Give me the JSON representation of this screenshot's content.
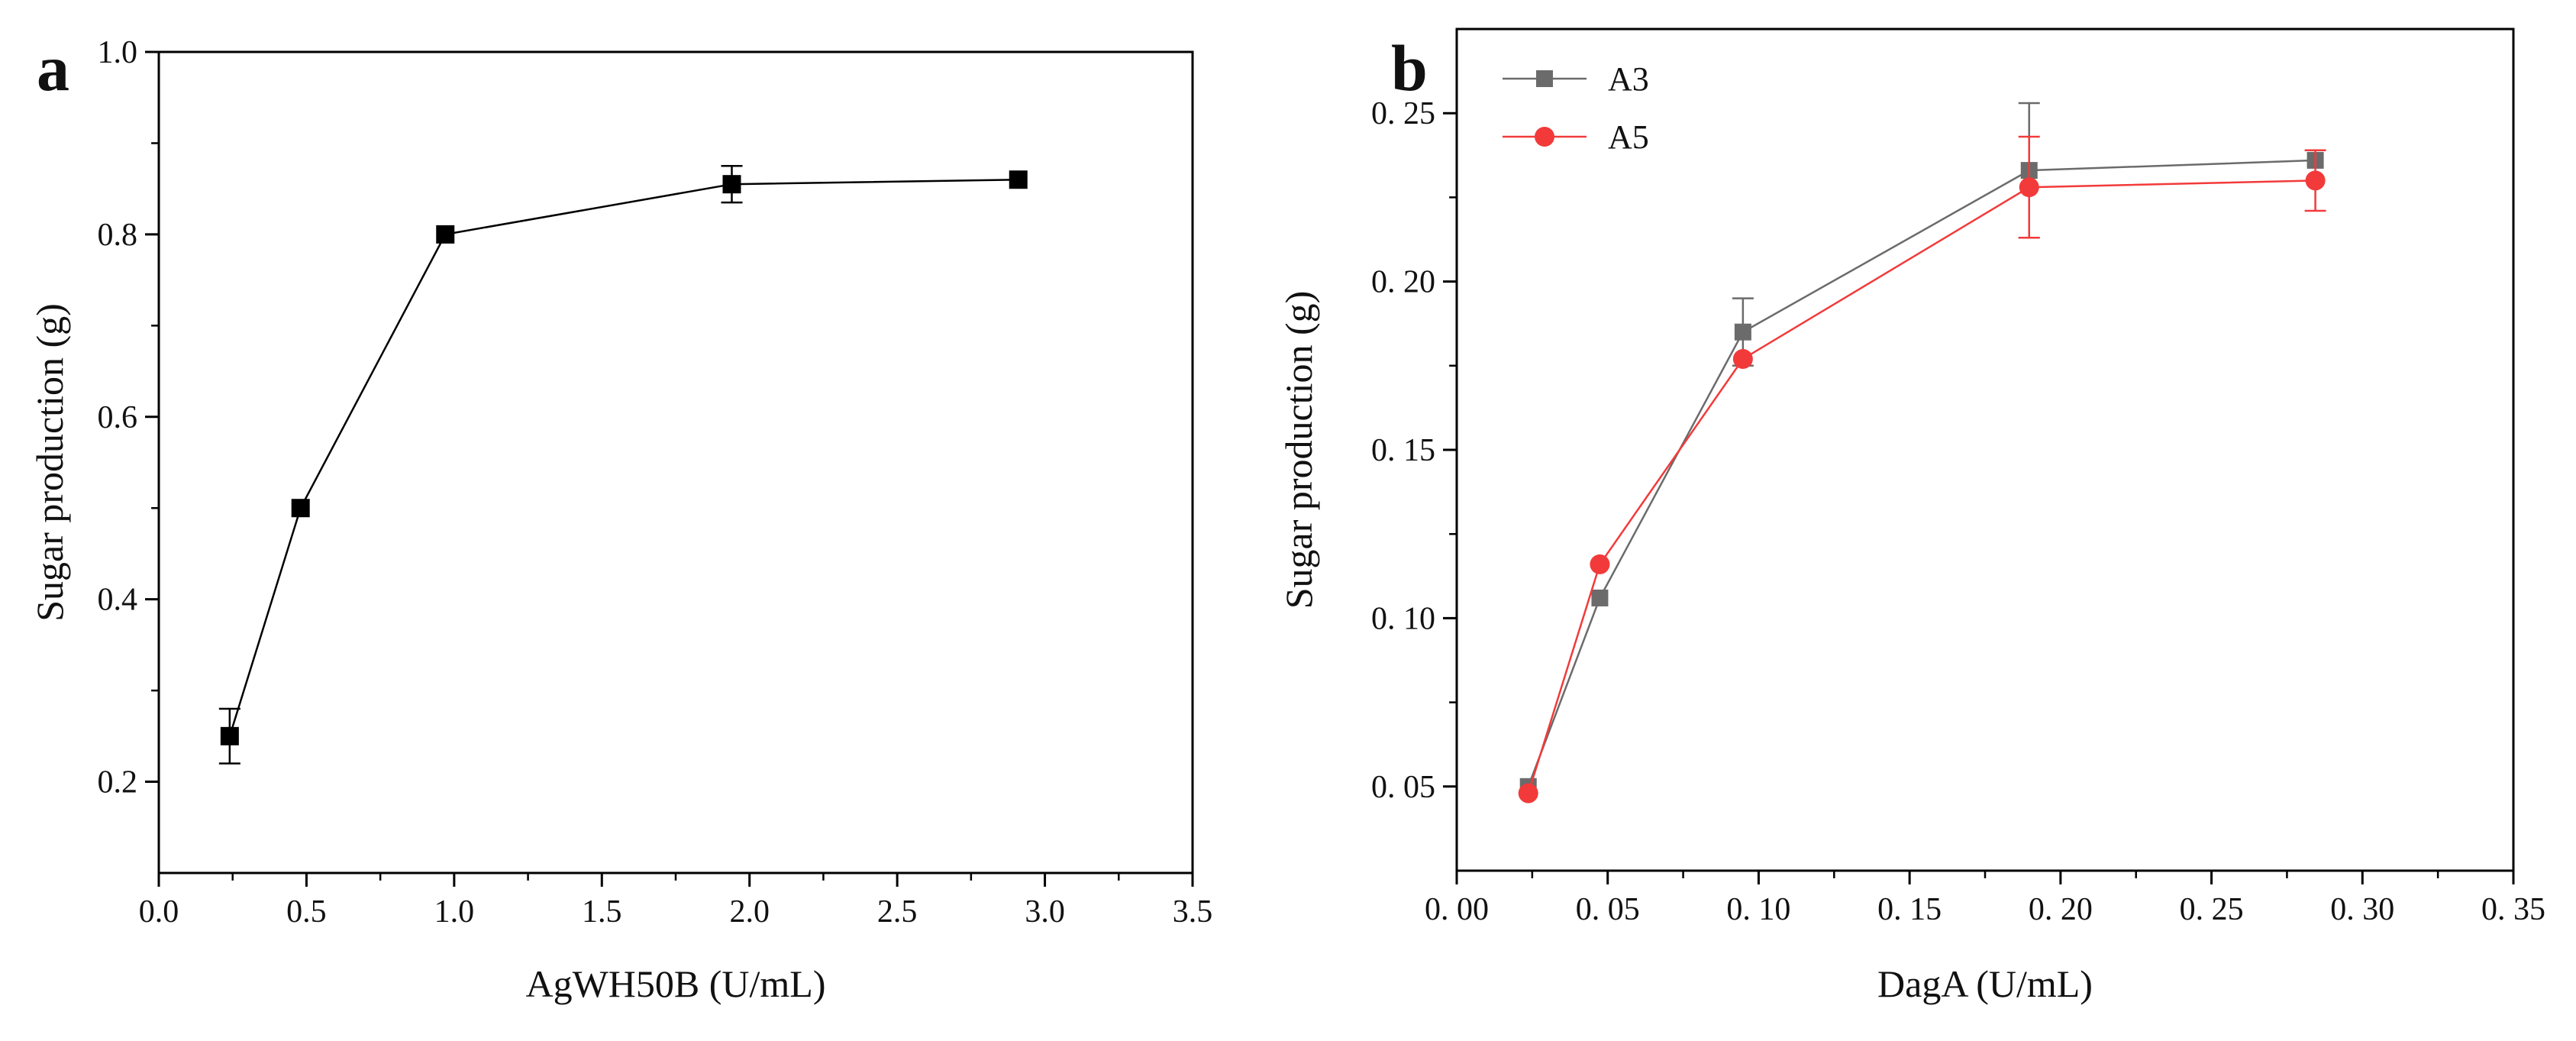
{
  "chart_data": [
    {
      "type": "line",
      "panel_label": "a",
      "title": "",
      "xlabel": "AgWH50B (U/mL)",
      "ylabel": "Sugar production (g)",
      "xlim": [
        0.0,
        3.5
      ],
      "ylim": [
        0.1,
        1.0
      ],
      "xticks": [
        0.0,
        0.5,
        1.0,
        1.5,
        2.0,
        2.5,
        3.0,
        3.5
      ],
      "xtick_labels": [
        "0.0",
        "0.5",
        "1.0",
        "1.5",
        "2.0",
        "2.5",
        "3.0",
        "3.5"
      ],
      "yticks": [
        0.2,
        0.4,
        0.6,
        0.8,
        1.0
      ],
      "ytick_labels": [
        "0.2",
        "0.4",
        "0.6",
        "0.8",
        "1.0"
      ],
      "grid": false,
      "legend": "none",
      "series": [
        {
          "name": "AgWH50B",
          "color": "#000000",
          "marker": "square",
          "x": [
            0.24,
            0.48,
            0.97,
            1.94,
            2.91
          ],
          "y": [
            0.25,
            0.5,
            0.8,
            0.855,
            0.86
          ],
          "err": [
            0.03,
            0.0,
            0.0,
            0.02,
            0.0
          ]
        }
      ]
    },
    {
      "type": "line",
      "panel_label": "b",
      "title": "",
      "xlabel": "DagA (U/mL)",
      "ylabel": "Sugar production (g)",
      "xlim": [
        0.0,
        0.35
      ],
      "ylim": [
        0.025,
        0.275
      ],
      "xticks": [
        0.0,
        0.05,
        0.1,
        0.15,
        0.2,
        0.25,
        0.3,
        0.35
      ],
      "xtick_labels": [
        "0. 00",
        "0. 05",
        "0. 10",
        "0. 15",
        "0. 20",
        "0. 25",
        "0. 30",
        "0. 35"
      ],
      "yticks": [
        0.05,
        0.1,
        0.15,
        0.2,
        0.25
      ],
      "ytick_labels": [
        "0. 05",
        "0. 10",
        "0. 15",
        "0. 20",
        "0. 25"
      ],
      "grid": false,
      "legend": "top-left",
      "series": [
        {
          "name": "A3",
          "color": "#6b6b6b",
          "marker": "square",
          "x": [
            0.0237,
            0.0474,
            0.0948,
            0.1896,
            0.2844
          ],
          "y": [
            0.05,
            0.106,
            0.185,
            0.233,
            0.236
          ],
          "err": [
            0.0,
            0.0,
            0.01,
            0.02,
            0.0
          ]
        },
        {
          "name": "A5",
          "color": "#f23a3a",
          "marker": "circle",
          "x": [
            0.0237,
            0.0474,
            0.0948,
            0.1896,
            0.2844
          ],
          "y": [
            0.048,
            0.116,
            0.177,
            0.228,
            0.23
          ],
          "err": [
            0.0,
            0.0,
            0.0,
            0.015,
            0.009
          ]
        }
      ]
    }
  ]
}
